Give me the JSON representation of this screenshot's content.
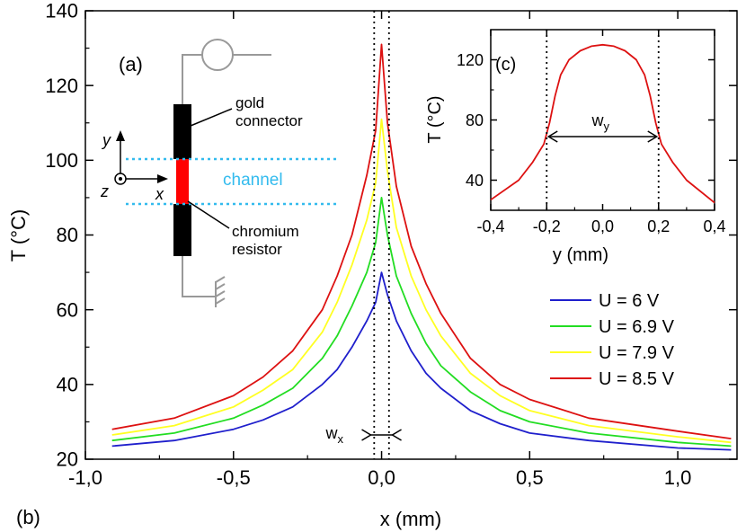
{
  "chart_data": [
    {
      "type": "line",
      "panel_label": "(b)",
      "xlabel": "x (mm)",
      "ylabel": "T (°C)",
      "xlim": [
        -1.0,
        1.2
      ],
      "ylim": [
        20,
        140
      ],
      "xticks": [
        -1.0,
        -0.5,
        0.0,
        0.5,
        1.0
      ],
      "xtick_labels": [
        "-1,0",
        "-0,5",
        "0,0",
        "0,5",
        "1,0"
      ],
      "yticks": [
        20,
        40,
        60,
        80,
        100,
        120,
        140
      ],
      "ytick_labels": [
        "20",
        "40",
        "60",
        "80",
        "100",
        "120",
        "140"
      ],
      "grid": false,
      "legend_position": "center-right",
      "series": [
        {
          "name": "U = 6 V",
          "color": "#1f1fcc",
          "x": [
            -0.91,
            -0.7,
            -0.5,
            -0.4,
            -0.3,
            -0.2,
            -0.15,
            -0.1,
            -0.05,
            -0.02,
            0.0,
            0.02,
            0.05,
            0.1,
            0.15,
            0.2,
            0.3,
            0.4,
            0.5,
            0.7,
            1.0,
            1.18
          ],
          "y": [
            23.5,
            25,
            28,
            30.5,
            34,
            40,
            44,
            50,
            57,
            62,
            70,
            64,
            57,
            49,
            43,
            39,
            33,
            29.5,
            27,
            25,
            23,
            22.5
          ]
        },
        {
          "name": "U = 6.9 V",
          "color": "#22dd22",
          "x": [
            -0.91,
            -0.7,
            -0.5,
            -0.4,
            -0.3,
            -0.2,
            -0.15,
            -0.1,
            -0.05,
            -0.02,
            0.0,
            0.02,
            0.05,
            0.1,
            0.15,
            0.2,
            0.3,
            0.4,
            0.5,
            0.7,
            1.0,
            1.18
          ],
          "y": [
            25,
            27,
            31,
            34.5,
            39,
            47,
            53,
            61,
            70,
            78,
            90,
            80,
            69,
            59,
            51,
            45,
            38,
            33,
            30,
            27,
            24.5,
            23.5
          ]
        },
        {
          "name": "U = 7.9 V",
          "color": "#ffff22",
          "x": [
            -0.91,
            -0.7,
            -0.5,
            -0.4,
            -0.3,
            -0.2,
            -0.15,
            -0.1,
            -0.05,
            -0.02,
            0.0,
            0.02,
            0.05,
            0.1,
            0.15,
            0.2,
            0.3,
            0.4,
            0.5,
            0.7,
            1.0,
            1.18
          ],
          "y": [
            26.5,
            29,
            34,
            38.5,
            44,
            54,
            62,
            72,
            84,
            94,
            111,
            97,
            82,
            69,
            60,
            53,
            43,
            37,
            33,
            29,
            26,
            24.5
          ]
        },
        {
          "name": "U = 8.5 V",
          "color": "#dd1111",
          "x": [
            -0.91,
            -0.7,
            -0.5,
            -0.4,
            -0.3,
            -0.2,
            -0.15,
            -0.1,
            -0.05,
            -0.02,
            0.0,
            0.02,
            0.05,
            0.1,
            0.15,
            0.2,
            0.3,
            0.4,
            0.5,
            0.7,
            1.0,
            1.18
          ],
          "y": [
            28,
            31,
            37,
            42,
            49,
            60,
            69,
            80,
            96,
            108,
            131,
            110,
            93,
            77,
            67,
            59,
            47,
            40,
            36,
            31,
            27.5,
            25.5
          ]
        }
      ],
      "annotations": [
        {
          "text": "w",
          "subscript": "x",
          "x": 0.0,
          "y": 26.5
        },
        {
          "type": "dotted-vline",
          "x": -0.025
        },
        {
          "type": "dotted-vline",
          "x": 0.025
        }
      ]
    },
    {
      "type": "line",
      "panel_label": "(c)",
      "xlabel": "y (mm)",
      "ylabel": "T (°C)",
      "xlim": [
        -0.4,
        0.4
      ],
      "ylim": [
        20,
        140
      ],
      "xticks": [
        -0.4,
        -0.2,
        0.0,
        0.2,
        0.4
      ],
      "xtick_labels": [
        "-0,4",
        "-0,2",
        "0,0",
        "0,2",
        "0,4"
      ],
      "yticks": [
        40,
        80,
        120
      ],
      "ytick_labels": [
        "40",
        "80",
        "120"
      ],
      "grid": false,
      "series": [
        {
          "color": "#dd1111",
          "x": [
            -0.4,
            -0.3,
            -0.25,
            -0.21,
            -0.19,
            -0.17,
            -0.15,
            -0.12,
            -0.08,
            -0.04,
            0.0,
            0.04,
            0.08,
            0.12,
            0.15,
            0.17,
            0.19,
            0.21,
            0.25,
            0.3,
            0.4
          ],
          "y": [
            27,
            40,
            52,
            64,
            78,
            96,
            110,
            120,
            126,
            129,
            130,
            129,
            126,
            120,
            110,
            96,
            78,
            64,
            52,
            40,
            25
          ]
        }
      ],
      "annotations": [
        {
          "text": "w",
          "subscript": "y",
          "x": 0.0,
          "y": 60
        },
        {
          "type": "dotted-vline",
          "x": -0.2
        },
        {
          "type": "dotted-vline",
          "x": 0.2
        }
      ]
    }
  ],
  "inset_a": {
    "panel_label": "(a)",
    "axis_y_label": "y",
    "axis_x_label": "x",
    "axis_z_label": "z",
    "gold_label_line1": "gold",
    "gold_label_line2": "connector",
    "channel_label": "channel",
    "chromium_label_line1": "chromium",
    "chromium_label_line2": "resistor",
    "colors": {
      "connector": "#000000",
      "resistor": "#ff0000",
      "channel": "#33bbee",
      "wire": "#999999"
    }
  }
}
